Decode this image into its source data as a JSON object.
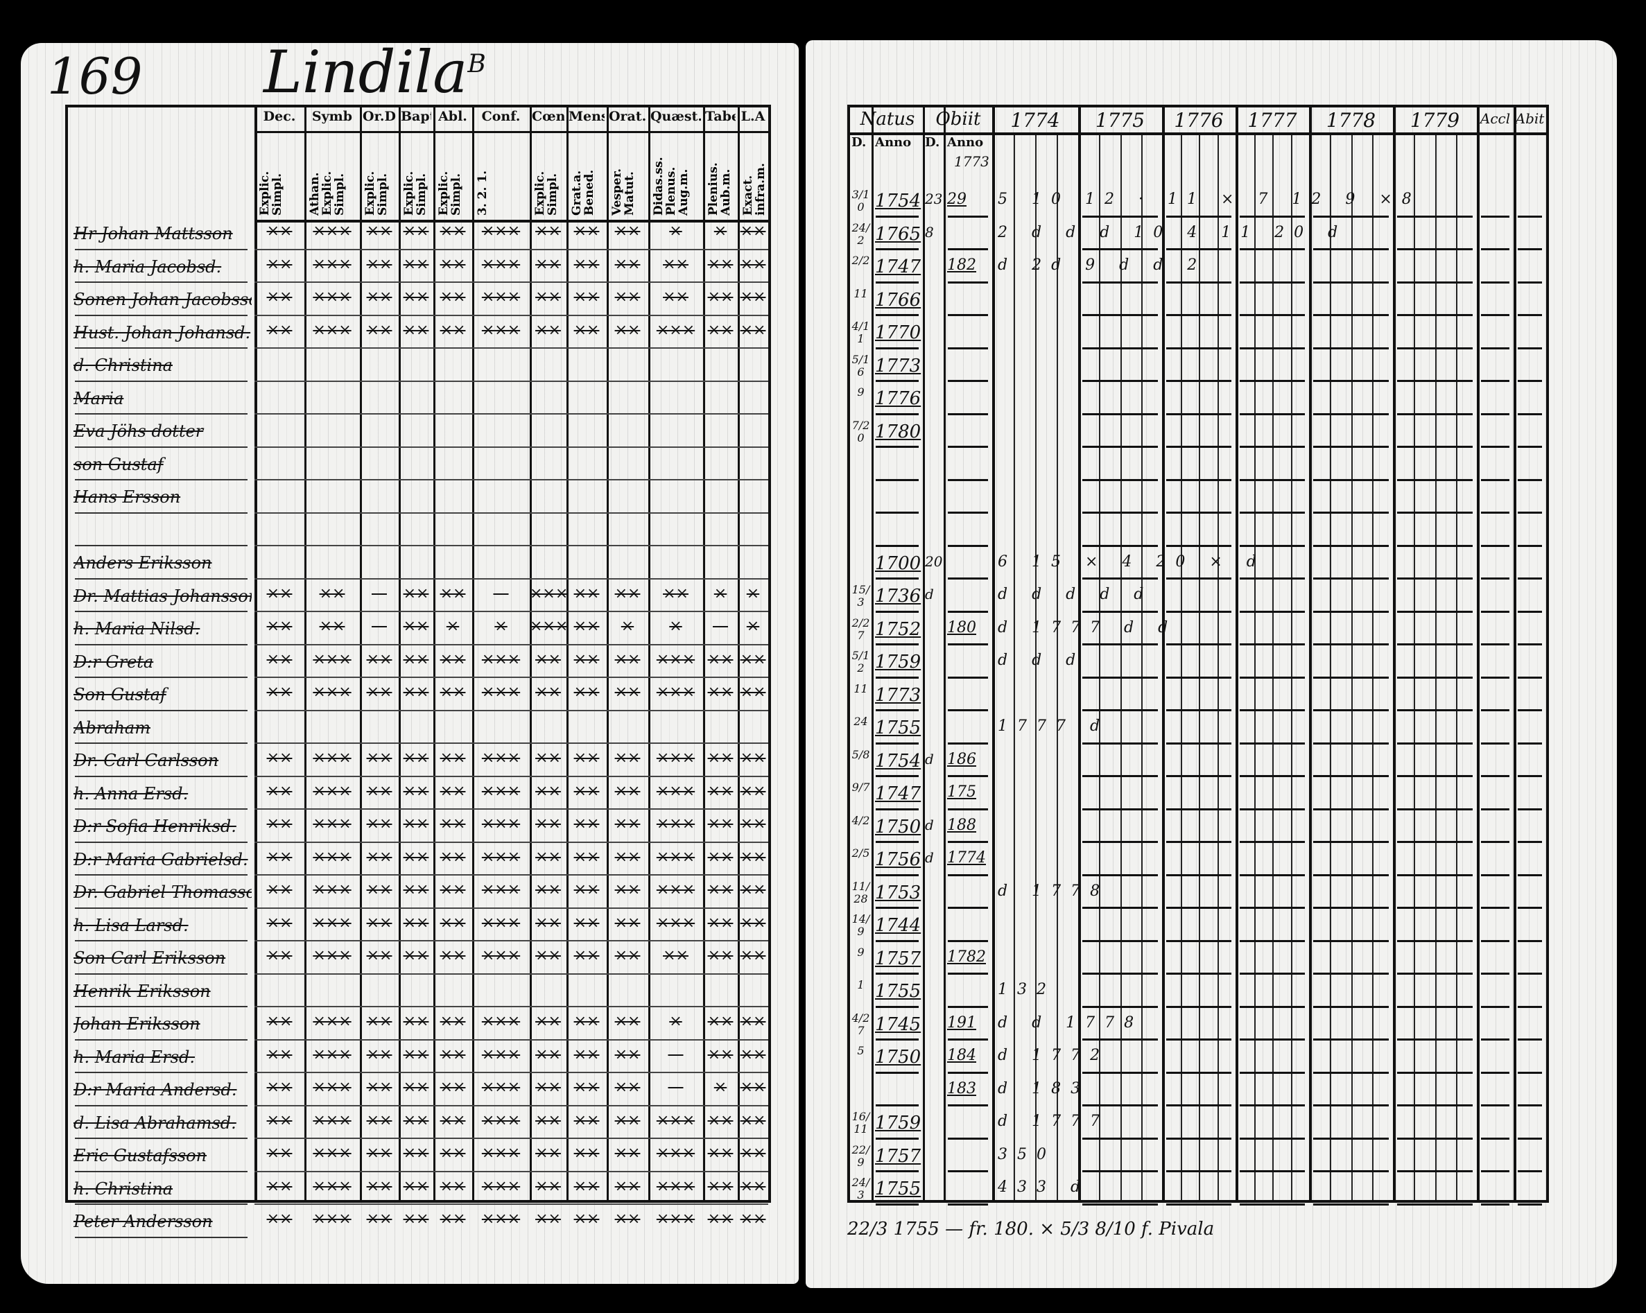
{
  "left_page": {
    "page_number": "169",
    "farm_name": "Lindila",
    "farm_superscript": "B",
    "columns": [
      {
        "head": "Dec.",
        "sub": "Explic. Simpl."
      },
      {
        "head": "Symb",
        "sub": "Athan. Explic. Simpl."
      },
      {
        "head": "Or.D",
        "sub": "Explic. Simpl."
      },
      {
        "head": "Bapt",
        "sub": "Explic. Simpl."
      },
      {
        "head": "Abl.",
        "sub": "Explic. Simpl."
      },
      {
        "head": "Conf.",
        "sub": "3. 2. 1."
      },
      {
        "head": "Cœn.D",
        "sub": "Explic. Simpl."
      },
      {
        "head": "Mens.",
        "sub": "Grat.a. Bened."
      },
      {
        "head": "Orat.",
        "sub": "Vesper. Matut."
      },
      {
        "head": "Quæst.",
        "sub": "Didas.ss. Plenus. Aug.m."
      },
      {
        "head": "Tabel",
        "sub": "Plenius. Aub.m."
      },
      {
        "head": "L.A",
        "sub": "Exact. infra.m."
      }
    ],
    "rows": [
      {
        "name": "Hr Johan Mattsson",
        "marks": "×× ××× ×× ×× ×× ××× ×× ×× ×× × × ××"
      },
      {
        "name": "h. Maria Jacobsd.",
        "marks": "×× ××× ×× ×× ×× ××× ×× ×× ×× ×× ×× ××"
      },
      {
        "name": "Sonen Johan Jacobsson",
        "marks": "×× ××× ×× ×× ×× ××× ×× ×× ×× ×× ×× ××"
      },
      {
        "name": "Hust. Johan Johansd.",
        "marks": "×× ××× ×× ×× ×× ××× ×× ×× ×× ××× ×× ××"
      },
      {
        "name": "d. Christina",
        "marks": ""
      },
      {
        "name": "Maria",
        "marks": ""
      },
      {
        "name": "Eva Jöhs dotter",
        "marks": ""
      },
      {
        "name": "son Gustaf",
        "marks": ""
      },
      {
        "name": "Hans Ersson",
        "marks": ""
      },
      {
        "name": "",
        "marks": ""
      },
      {
        "name": "Anders Eriksson",
        "marks": ""
      },
      {
        "name": "Dr. Mattias Johansson",
        "marks": "×× ×× — ×× ×× — ××× ×× ×× ×× × ×"
      },
      {
        "name": "h. Maria Nilsd.",
        "marks": "×× ×× — ×× × × ××× ×× × × — ×"
      },
      {
        "name": "D:r Greta",
        "marks": "×× ××× ×× ×× ×× ××× ×× ×× ×× ××× ×× ××"
      },
      {
        "name": "Son Gustaf",
        "marks": "×× ××× ×× ×× ×× ××× ×× ×× ×× ××× ×× ××"
      },
      {
        "name": "Abraham",
        "marks": ""
      },
      {
        "name": "Dr. Carl Carlsson",
        "marks": "×× ××× ×× ×× ×× ××× ×× ×× ×× ××× ×× ××"
      },
      {
        "name": "h. Anna Ersd.",
        "marks": "×× ××× ×× ×× ×× ××× ×× ×× ×× ××× ×× ××"
      },
      {
        "name": "D:r Sofia Henriksd.",
        "marks": "×× ××× ×× ×× ×× ××× ×× ×× ×× ××× ×× ××"
      },
      {
        "name": "D:r Maria Gabrielsd.",
        "marks": "×× ××× ×× ×× ×× ××× ×× ×× ×× ××× ×× ××"
      },
      {
        "name": "Dr. Gabriel Thomasson",
        "marks": "×× ××× ×× ×× ×× ××× ×× ×× ×× ××× ×× ××"
      },
      {
        "name": "h. Lisa Larsd.",
        "marks": "×× ××× ×× ×× ×× ××× ×× ×× ×× ××× ×× ××"
      },
      {
        "name": "Son Carl Eriksson",
        "marks": "×× ××× ×× ×× ×× ××× ×× ×× ×× ×× ×× ××"
      },
      {
        "name": "Henrik Eriksson",
        "marks": ""
      },
      {
        "name": "Johan Eriksson",
        "marks": "×× ××× ×× ×× ×× ××× ×× ×× ×× × ×× ××"
      },
      {
        "name": "h. Maria Ersd.",
        "marks": "×× ××× ×× ×× ×× ××× ×× ×× ×× — ×× ××"
      },
      {
        "name": "D:r Maria Andersd.",
        "marks": "×× ××× ×× ×× ×× ××× ×× ×× ×× — × ××"
      },
      {
        "name": "d. Lisa Abrahamsd.",
        "marks": "×× ××× ×× ×× ×× ××× ×× ×× ×× ××× ×× ××"
      },
      {
        "name": "Eric Gustafsson",
        "marks": "×× ××× ×× ×× ×× ××× ×× ×× ×× ××× ×× ××"
      },
      {
        "name": "h. Christina",
        "marks": "×× ××× ×× ×× ×× ××× ×× ×× ×× ××× ×× ××"
      },
      {
        "name": "Peter Andersson",
        "marks": "×× ××× ×× ×× ×× ××× ×× ×× ×× ××× ×× ××"
      }
    ]
  },
  "right_page": {
    "headers": {
      "natus": "Natus",
      "obiit": "Obiit",
      "natus_d": "D.",
      "natus_anno": "Anno",
      "obiit_d": "D.",
      "obiit_anno": "Anno",
      "obiit_year_note": "1773",
      "accl": "Accl",
      "abit": "Abit"
    },
    "years": [
      "1774",
      "1775",
      "1776",
      "1777",
      "1778",
      "1779"
    ],
    "rows": [
      {
        "d": "3/10",
        "anno": "1754",
        "od": "23",
        "oanno": "29",
        "notes": "5 10 12 · 11 × 7 12 9 ×8"
      },
      {
        "d": "24/2",
        "anno": "1765",
        "od": "8",
        "oanno": "",
        "notes": "2 d d d 10 4 11 20 d"
      },
      {
        "d": "2/2",
        "anno": "1747",
        "od": "",
        "oanno": "182",
        "notes": "d 2d 9 d d 2"
      },
      {
        "d": "11",
        "anno": "1766",
        "od": "",
        "oanno": "",
        "notes": ""
      },
      {
        "d": "4/11",
        "anno": "1770",
        "od": "",
        "oanno": "",
        "notes": ""
      },
      {
        "d": "5/16",
        "anno": "1773",
        "od": "",
        "oanno": "",
        "notes": ""
      },
      {
        "d": "9",
        "anno": "1776",
        "od": "",
        "oanno": "",
        "notes": ""
      },
      {
        "d": "7/20",
        "anno": "1780",
        "od": "",
        "oanno": "",
        "notes": ""
      },
      {
        "d": "",
        "anno": "",
        "od": "",
        "oanno": "",
        "notes": ""
      },
      {
        "d": "",
        "anno": "",
        "od": "",
        "oanno": "",
        "notes": ""
      },
      {
        "d": "",
        "anno": "",
        "od": "",
        "oanno": "",
        "notes": ""
      },
      {
        "d": "",
        "anno": "1700",
        "od": "20",
        "oanno": "",
        "notes": "6 15 × 4 20 × d"
      },
      {
        "d": "15/3",
        "anno": "1736",
        "od": "d",
        "oanno": "",
        "notes": "d d d d d"
      },
      {
        "d": "2/27",
        "anno": "1752",
        "od": "",
        "oanno": "180",
        "notes": "d 1777 d d"
      },
      {
        "d": "5/12",
        "anno": "1759",
        "od": "",
        "oanno": "",
        "notes": "d d d"
      },
      {
        "d": "11",
        "anno": "1773",
        "od": "",
        "oanno": "",
        "notes": ""
      },
      {
        "d": "24",
        "anno": "1755",
        "od": "",
        "oanno": "",
        "notes": "1777 d"
      },
      {
        "d": "5/8",
        "anno": "1754",
        "od": "d",
        "oanno": "186",
        "notes": ""
      },
      {
        "d": "9/7",
        "anno": "1747",
        "od": "",
        "oanno": "175",
        "notes": ""
      },
      {
        "d": "4/2",
        "anno": "1750",
        "od": "d",
        "oanno": "188",
        "notes": ""
      },
      {
        "d": "2/5",
        "anno": "1756",
        "od": "d",
        "oanno": "1774",
        "notes": ""
      },
      {
        "d": "11/28",
        "anno": "1753",
        "od": "",
        "oanno": "",
        "notes": "d 1778"
      },
      {
        "d": "14/9",
        "anno": "1744",
        "od": "",
        "oanno": "",
        "notes": ""
      },
      {
        "d": "9",
        "anno": "1757",
        "od": "",
        "oanno": "1782",
        "notes": ""
      },
      {
        "d": "1",
        "anno": "1755",
        "od": "",
        "oanno": "",
        "notes": "132"
      },
      {
        "d": "4/27",
        "anno": "1745",
        "od": "",
        "oanno": "191",
        "notes": "d d 1778"
      },
      {
        "d": "5",
        "anno": "1750",
        "od": "",
        "oanno": "184",
        "notes": "d 1772"
      },
      {
        "d": "",
        "anno": "",
        "od": "",
        "oanno": "183",
        "notes": "d 183"
      },
      {
        "d": "16/11",
        "anno": "1759",
        "od": "",
        "oanno": "",
        "notes": "d 1777"
      },
      {
        "d": "22/9",
        "anno": "1757",
        "od": "",
        "oanno": "",
        "notes": "350"
      },
      {
        "d": "24/3",
        "anno": "1755",
        "od": "",
        "oanno": "",
        "notes": "433 d"
      }
    ],
    "footer_note": "22/3 1755 — fr. 180. × 5/3 8/10 f. Pivala"
  }
}
